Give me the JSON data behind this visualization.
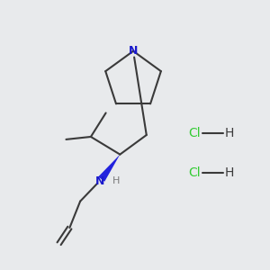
{
  "background_color": "#e8eaec",
  "bond_color": "#3a3a3a",
  "N_color": "#1a1acc",
  "Cl_color": "#33cc33",
  "bond_width": 1.5,
  "wedge_color": "#2222dd",
  "figsize": [
    3.0,
    3.0
  ],
  "dpi": 100,
  "HCl1": [
    210,
    148
  ],
  "HCl2": [
    210,
    193
  ]
}
